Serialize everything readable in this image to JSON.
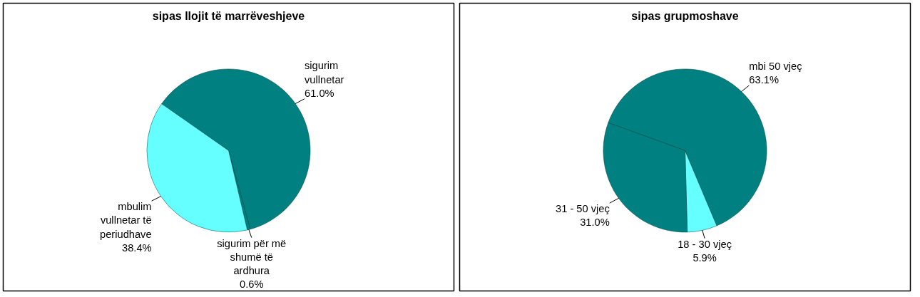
{
  "chart_data": [
    {
      "type": "pie",
      "title": "sipas llojit të marrëveshjeve",
      "categories": [
        "sigurim vullnetar",
        "sigurim për më shumë të ardhura",
        "mbulim vullnetar të periudhave"
      ],
      "values": [
        61.0,
        0.6,
        38.4
      ],
      "colors": [
        "#008080",
        "#008080",
        "#66ffff"
      ],
      "value_labels": [
        "61.0%",
        "0.6%",
        "38.4%"
      ]
    },
    {
      "type": "pie",
      "title": "sipas grupmoshave",
      "categories": [
        "mbi 50 vjeç",
        "18 - 30 vjeç",
        "31 - 50 vjeç"
      ],
      "values": [
        63.1,
        5.9,
        31.0
      ],
      "colors": [
        "#008080",
        "#66ffff",
        "#008080"
      ],
      "value_labels": [
        "63.1%",
        "5.9%",
        "31.0%"
      ]
    }
  ]
}
